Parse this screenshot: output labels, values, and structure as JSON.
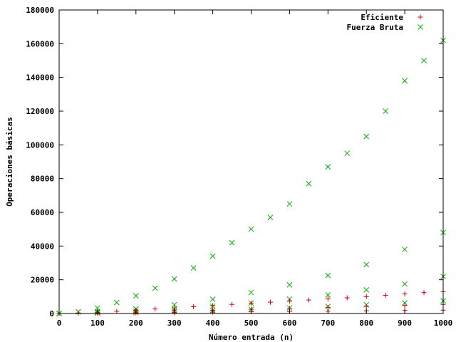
{
  "chart_data": {
    "type": "scatter",
    "title": "",
    "xlabel": "Número entrada (n)",
    "ylabel": "Operaciones básicas",
    "xlim": [
      0,
      1000
    ],
    "ylim": [
      0,
      180000
    ],
    "x_ticks": [
      0,
      100,
      200,
      300,
      400,
      500,
      600,
      700,
      800,
      900,
      1000
    ],
    "y_ticks": [
      0,
      20000,
      40000,
      60000,
      80000,
      100000,
      120000,
      140000,
      160000,
      180000
    ],
    "grid": false,
    "legend_position": "top-right",
    "series": [
      {
        "name": "Eficiente",
        "marker": "+",
        "color": "#d40000",
        "x": [
          0,
          50,
          100,
          150,
          200,
          250,
          300,
          350,
          400,
          450,
          500,
          550,
          600,
          650,
          700,
          750,
          800,
          850,
          900,
          950,
          1000,
          0,
          100,
          200,
          300,
          400,
          500,
          600,
          700,
          800,
          900,
          1000,
          0,
          100,
          200,
          300,
          400,
          500,
          600,
          700,
          800,
          900,
          1000
        ],
        "y": [
          0,
          300,
          700,
          1300,
          2000,
          2700,
          3300,
          4000,
          4700,
          5400,
          6000,
          6700,
          7400,
          8000,
          8700,
          9300,
          10000,
          10800,
          11600,
          12400,
          13000,
          0,
          400,
          900,
          1400,
          1900,
          2500,
          3000,
          3600,
          4200,
          4800,
          5400,
          0,
          200,
          400,
          600,
          800,
          1000,
          1200,
          1400,
          1600,
          1800,
          2000
        ]
      },
      {
        "name": "Fuerza Bruta",
        "marker": "x",
        "color": "#00b000",
        "x": [
          0,
          50,
          100,
          150,
          200,
          250,
          300,
          350,
          400,
          450,
          500,
          550,
          600,
          650,
          700,
          750,
          800,
          850,
          900,
          950,
          1000,
          0,
          100,
          200,
          300,
          400,
          500,
          600,
          700,
          800,
          900,
          1000,
          0,
          100,
          200,
          300,
          400,
          500,
          600,
          700,
          800,
          900,
          1000,
          0,
          100,
          200,
          300,
          400,
          500,
          600,
          700,
          800,
          900,
          1000
        ],
        "y": [
          0,
          1000,
          3200,
          6500,
          10500,
          15000,
          20500,
          27000,
          34000,
          42000,
          50000,
          57000,
          65000,
          77000,
          87000,
          95000,
          105000,
          120000,
          138000,
          150000,
          162000,
          0,
          1200,
          2800,
          5200,
          8500,
          12500,
          17000,
          22500,
          29000,
          38000,
          48000,
          0,
          600,
          1500,
          2700,
          4300,
          6200,
          8500,
          11000,
          14000,
          17500,
          22000,
          0,
          300,
          700,
          1200,
          1800,
          2500,
          3300,
          4200,
          5200,
          6300,
          7500
        ]
      }
    ]
  }
}
